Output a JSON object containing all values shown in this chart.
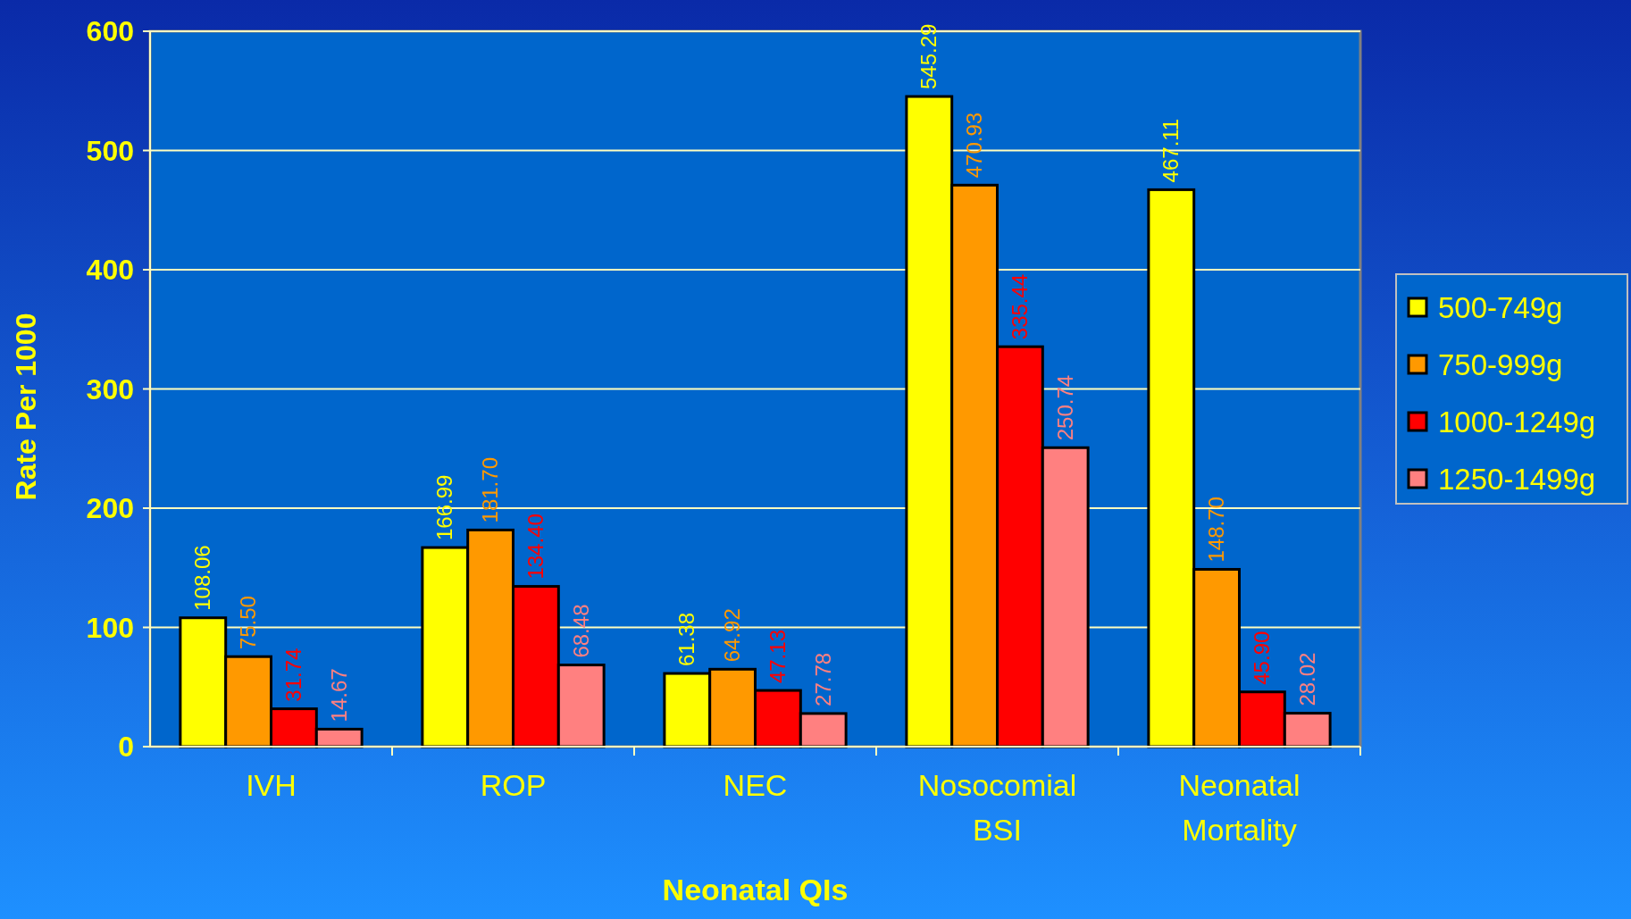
{
  "chart_data": {
    "type": "bar",
    "xlabel": "Neonatal QIs",
    "ylabel": "Rate Per 1000",
    "categories": [
      "IVH",
      "ROP",
      "NEC",
      "Nosocomial BSI",
      "Neonatal Mortality"
    ],
    "series": [
      {
        "name": "500-749g",
        "color": "#ffff00",
        "values": [
          108.06,
          166.99,
          61.38,
          545.29,
          467.11
        ],
        "value_labels": [
          "108.06",
          "166.99",
          "61.38",
          "545.29",
          "467.11"
        ]
      },
      {
        "name": "750-999g",
        "color": "#ff9900",
        "values": [
          75.5,
          181.7,
          64.92,
          470.93,
          148.7
        ],
        "value_labels": [
          "75.50",
          "181.70",
          "64.92",
          "470.93",
          "148.70"
        ]
      },
      {
        "name": "1000-1249g",
        "color": "#ff0000",
        "values": [
          31.74,
          134.4,
          47.13,
          335.44,
          45.9
        ],
        "value_labels": [
          "31.74",
          "134.40",
          "47.13",
          "335.44",
          "45.90"
        ]
      },
      {
        "name": "1250-1499g",
        "color": "#ff8080",
        "values": [
          14.67,
          68.48,
          27.78,
          250.74,
          28.02
        ],
        "value_labels": [
          "14.67",
          "68.48",
          "27.78",
          "250.74",
          "28.02"
        ]
      }
    ],
    "ylim": [
      0,
      600
    ],
    "yticks": [
      0,
      100,
      200,
      300,
      400,
      500,
      600
    ],
    "grid": "y",
    "legend": "right"
  }
}
